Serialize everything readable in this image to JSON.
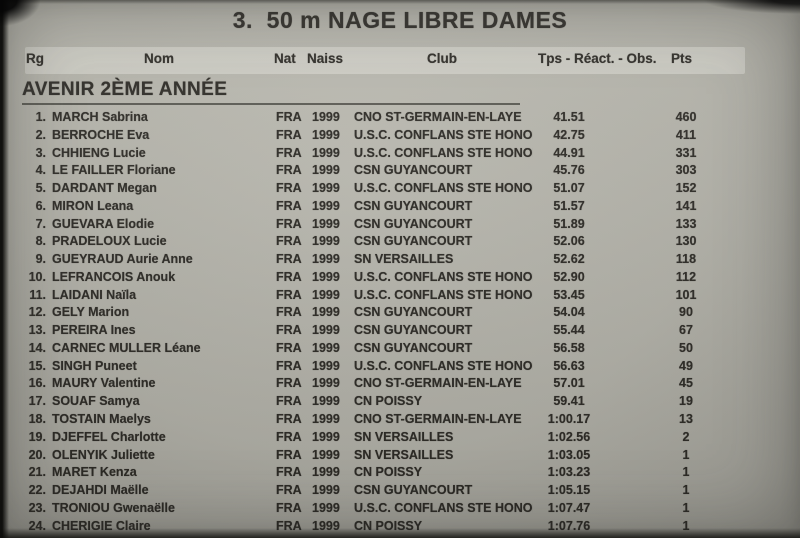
{
  "page": {
    "title": "3.  50 m NAGE LIBRE DAMES"
  },
  "table": {
    "columns": {
      "rank": "Rg",
      "name": "Nom",
      "nat": "Nat",
      "birth": "Naiss",
      "club": "Club",
      "time": "Tps - Réact. - Obs.",
      "points": "Pts"
    }
  },
  "section": {
    "title": "AVENIR 2ÈME ANNÉE"
  },
  "results": {
    "rows": [
      {
        "rank": "1.",
        "name": "MARCH Sabrina",
        "nat": "FRA",
        "birth": "1999",
        "club": "CNO ST-GERMAIN-EN-LAYE",
        "time": "41.51",
        "points": "460"
      },
      {
        "rank": "2.",
        "name": "BERROCHE Eva",
        "nat": "FRA",
        "birth": "1999",
        "club": "U.S.C. CONFLANS STE HONORINE",
        "time": "42.75",
        "points": "411"
      },
      {
        "rank": "3.",
        "name": "CHHIENG Lucie",
        "nat": "FRA",
        "birth": "1999",
        "club": "U.S.C. CONFLANS STE HONORINE",
        "time": "44.91",
        "points": "331"
      },
      {
        "rank": "4.",
        "name": "LE FAILLER Floriane",
        "nat": "FRA",
        "birth": "1999",
        "club": "CSN GUYANCOURT",
        "time": "45.76",
        "points": "303"
      },
      {
        "rank": "5.",
        "name": "DARDANT Megan",
        "nat": "FRA",
        "birth": "1999",
        "club": "U.S.C. CONFLANS STE HONORINE",
        "time": "51.07",
        "points": "152"
      },
      {
        "rank": "6.",
        "name": "MIRON Leana",
        "nat": "FRA",
        "birth": "1999",
        "club": "CSN GUYANCOURT",
        "time": "51.57",
        "points": "141"
      },
      {
        "rank": "7.",
        "name": "GUEVARA Elodie",
        "nat": "FRA",
        "birth": "1999",
        "club": "CSN GUYANCOURT",
        "time": "51.89",
        "points": "133"
      },
      {
        "rank": "8.",
        "name": "PRADELOUX Lucie",
        "nat": "FRA",
        "birth": "1999",
        "club": "CSN GUYANCOURT",
        "time": "52.06",
        "points": "130"
      },
      {
        "rank": "9.",
        "name": "GUEYRAUD Aurie Anne",
        "nat": "FRA",
        "birth": "1999",
        "club": "SN VERSAILLES",
        "time": "52.62",
        "points": "118"
      },
      {
        "rank": "10.",
        "name": "LEFRANCOIS Anouk",
        "nat": "FRA",
        "birth": "1999",
        "club": "U.S.C. CONFLANS STE HONORINE",
        "time": "52.90",
        "points": "112"
      },
      {
        "rank": "11.",
        "name": "LAIDANI Naïla",
        "nat": "FRA",
        "birth": "1999",
        "club": "U.S.C. CONFLANS STE HONORINE",
        "time": "53.45",
        "points": "101"
      },
      {
        "rank": "12.",
        "name": "GELY Marion",
        "nat": "FRA",
        "birth": "1999",
        "club": "CSN GUYANCOURT",
        "time": "54.04",
        "points": "90"
      },
      {
        "rank": "13.",
        "name": "PEREIRA Ines",
        "nat": "FRA",
        "birth": "1999",
        "club": "CSN GUYANCOURT",
        "time": "55.44",
        "points": "67"
      },
      {
        "rank": "14.",
        "name": "CARNEC MULLER Léane",
        "nat": "FRA",
        "birth": "1999",
        "club": "CSN GUYANCOURT",
        "time": "56.58",
        "points": "50"
      },
      {
        "rank": "15.",
        "name": "SINGH Puneet",
        "nat": "FRA",
        "birth": "1999",
        "club": "U.S.C. CONFLANS STE HONORINE",
        "time": "56.63",
        "points": "49"
      },
      {
        "rank": "16.",
        "name": "MAURY Valentine",
        "nat": "FRA",
        "birth": "1999",
        "club": "CNO ST-GERMAIN-EN-LAYE",
        "time": "57.01",
        "points": "45"
      },
      {
        "rank": "17.",
        "name": "SOUAF Samya",
        "nat": "FRA",
        "birth": "1999",
        "club": "CN POISSY",
        "time": "59.41",
        "points": "19"
      },
      {
        "rank": "18.",
        "name": "TOSTAIN Maelys",
        "nat": "FRA",
        "birth": "1999",
        "club": "CNO ST-GERMAIN-EN-LAYE",
        "time": "1:00.17",
        "points": "13"
      },
      {
        "rank": "19.",
        "name": "DJEFFEL Charlotte",
        "nat": "FRA",
        "birth": "1999",
        "club": "SN VERSAILLES",
        "time": "1:02.56",
        "points": "2"
      },
      {
        "rank": "20.",
        "name": "OLENYIK Juliette",
        "nat": "FRA",
        "birth": "1999",
        "club": "SN VERSAILLES",
        "time": "1:03.05",
        "points": "1"
      },
      {
        "rank": "21.",
        "name": "MARET Kenza",
        "nat": "FRA",
        "birth": "1999",
        "club": "CN POISSY",
        "time": "1:03.23",
        "points": "1"
      },
      {
        "rank": "22.",
        "name": "DEJAHDI Maëlle",
        "nat": "FRA",
        "birth": "1999",
        "club": "CSN GUYANCOURT",
        "time": "1:05.15",
        "points": "1"
      },
      {
        "rank": "23.",
        "name": "TRONIOU Gwenaëlle",
        "nat": "FRA",
        "birth": "1999",
        "club": "U.S.C. CONFLANS STE HONORINE",
        "time": "1:07.47",
        "points": "1"
      },
      {
        "rank": "24.",
        "name": "CHERIGIE Claire",
        "nat": "FRA",
        "birth": "1999",
        "club": "CN POISSY",
        "time": "1:07.76",
        "points": "1"
      }
    ]
  },
  "colors": {
    "paper": "#b5b4ab",
    "ink": "#2e2c27",
    "header_band": "#c8c7be"
  }
}
